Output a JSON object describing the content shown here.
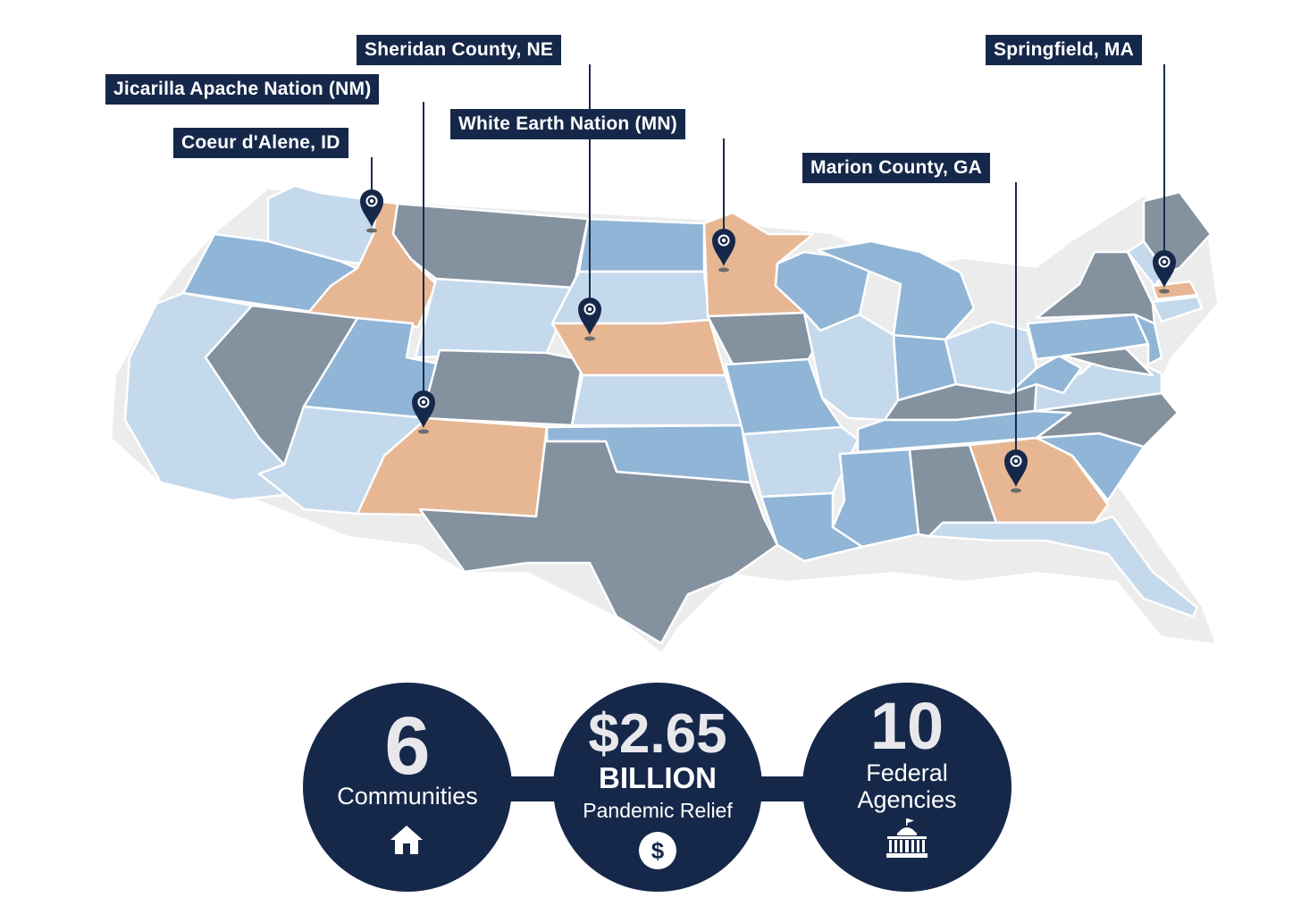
{
  "locations": [
    {
      "name": "Coeur d'Alene, ID",
      "icon": "map-pin-icon"
    },
    {
      "name": "Jicarilla Apache Nation (NM)",
      "icon": "map-pin-icon"
    },
    {
      "name": "Sheridan County, NE",
      "icon": "map-pin-icon"
    },
    {
      "name": "White Earth Nation (MN)",
      "icon": "map-pin-icon"
    },
    {
      "name": "Marion County, GA",
      "icon": "map-pin-icon"
    },
    {
      "name": "Springfield, MA",
      "icon": "map-pin-icon"
    }
  ],
  "stats": [
    {
      "value": "6",
      "label": "Communities",
      "icon": "house-icon"
    },
    {
      "value": "$2.65",
      "unit": "BILLION",
      "label": "Pandemic Relief",
      "icon": "dollar-icon"
    },
    {
      "value": "10",
      "label_line1": "Federal",
      "label_line2": "Agencies",
      "icon": "government-building-icon"
    }
  ],
  "colors": {
    "navy": "#16284a",
    "pale_blue": "#c5d9ec",
    "mid_blue": "#90b5d6",
    "gray": "#84919f",
    "tan": "#e7b794"
  }
}
